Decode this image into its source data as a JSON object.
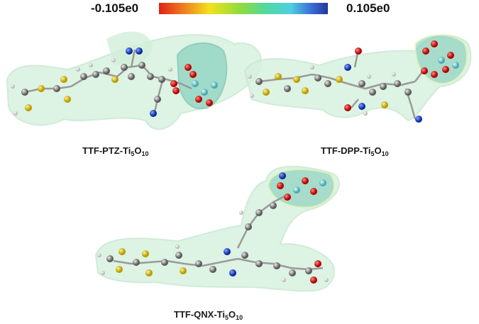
{
  "scale": {
    "min_label": "-0.105e0",
    "max_label": "0.105e0"
  },
  "molecules": [
    {
      "name": "TTF-PTZ-Ti",
      "sub1": "5",
      "mid": "O",
      "sub2": "10"
    },
    {
      "name": "TTF-DPP-Ti",
      "sub1": "5",
      "mid": "O",
      "sub2": "10"
    },
    {
      "name": "TTF-QNX-Ti",
      "sub1": "5",
      "mid": "O",
      "sub2": "10"
    }
  ]
}
